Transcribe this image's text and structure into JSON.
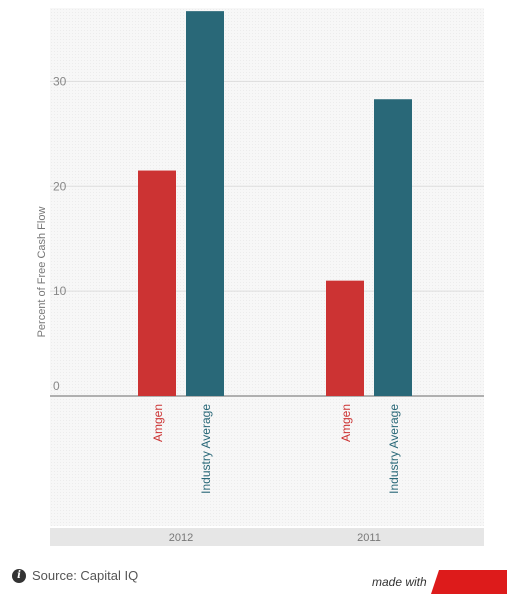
{
  "chart_data": {
    "type": "bar",
    "title": "",
    "xlabel": "",
    "ylabel": "Percent of Free Cash Flow",
    "ylim": [
      0,
      37
    ],
    "yticks": [
      0,
      10,
      20,
      30
    ],
    "grid": true,
    "groups": [
      {
        "label": "2012",
        "bars": [
          {
            "name": "Amgen",
            "value": 21.5
          },
          {
            "name": "Industry Average",
            "value": 36.7
          }
        ]
      },
      {
        "label": "2011",
        "bars": [
          {
            "name": "Amgen",
            "value": 11.0
          },
          {
            "name": "Industry Average",
            "value": 28.3
          }
        ]
      }
    ],
    "colors": {
      "Amgen": "#cc3333",
      "Industry Average": "#296878"
    }
  },
  "footer": {
    "source_text": "Source: Capital IQ",
    "info_icon": "info-icon",
    "made_with": "made with",
    "brand_color": "#dd1b1b"
  }
}
